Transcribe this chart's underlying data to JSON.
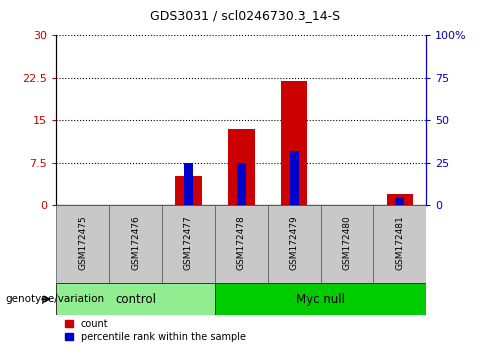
{
  "title": "GDS3031 / scl0246730.3_14-S",
  "samples": [
    "GSM172475",
    "GSM172476",
    "GSM172477",
    "GSM172478",
    "GSM172479",
    "GSM172480",
    "GSM172481"
  ],
  "count_values": [
    0,
    0,
    5.2,
    13.5,
    22.0,
    0,
    2.0
  ],
  "percentile_values": [
    0,
    0,
    25.0,
    25.0,
    32.0,
    0,
    5.0
  ],
  "bar_color_red": "#cc0000",
  "bar_color_blue": "#0000cc",
  "ylim_left": [
    0,
    30
  ],
  "ylim_right": [
    0,
    100
  ],
  "yticks_left": [
    0,
    7.5,
    15,
    22.5,
    30
  ],
  "yticks_right": [
    0,
    25,
    50,
    75,
    100
  ],
  "ytick_labels_left": [
    "0",
    "7.5",
    "15",
    "22.5",
    "30"
  ],
  "ytick_labels_right": [
    "0",
    "25",
    "50",
    "75",
    "100%"
  ],
  "grid_color": "#000000",
  "group_spans": [
    {
      "start": 0,
      "end": 2,
      "label": "control",
      "color": "#90ee90"
    },
    {
      "start": 3,
      "end": 6,
      "label": "Myc null",
      "color": "#00cc00"
    }
  ],
  "xlabel_row": "genotype/variation",
  "legend_count_label": "count",
  "legend_percentile_label": "percentile rank within the sample",
  "bg_color": "#ffffff",
  "plot_bg": "#ffffff",
  "tick_label_color_left": "#cc0000",
  "tick_label_color_right": "#0000cc",
  "bar_width": 0.5,
  "sample_box_color": "#c8c8c8",
  "figsize": [
    4.9,
    3.54
  ],
  "dpi": 100
}
